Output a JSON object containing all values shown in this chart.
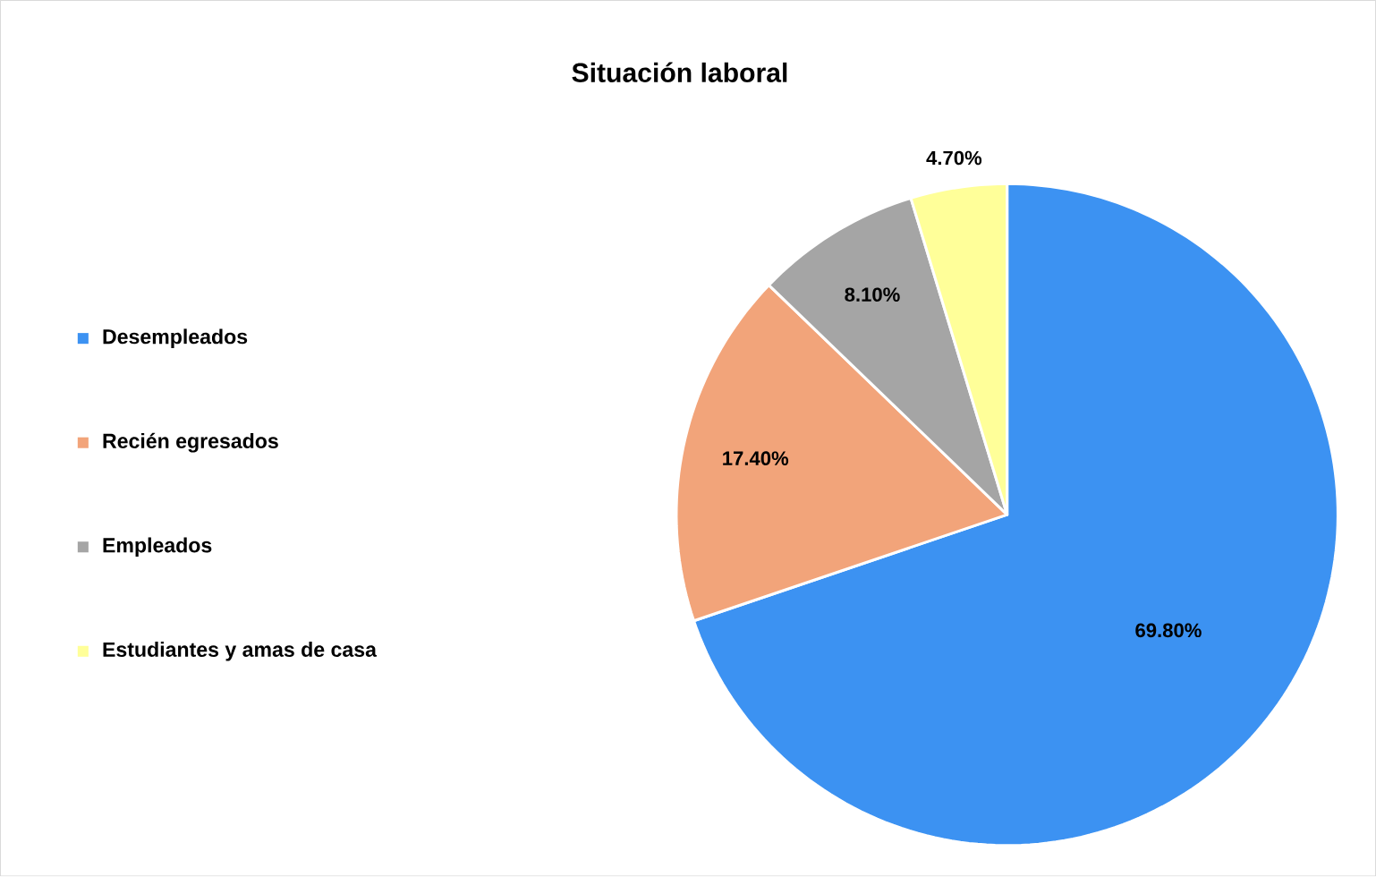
{
  "chart_data": {
    "type": "pie",
    "title": "Situación laboral",
    "categories": [
      "Desempleados",
      "Recién egresados",
      "Empleados",
      "Estudiantes y amas de casa"
    ],
    "values": [
      69.8,
      17.4,
      8.1,
      4.7
    ],
    "value_labels": [
      "69.80%",
      "17.40%",
      "8.10%",
      "4.70%"
    ],
    "colors": [
      "#3c92f2",
      "#f2a47a",
      "#a5a5a5",
      "#ffff99"
    ],
    "legend": "left"
  }
}
